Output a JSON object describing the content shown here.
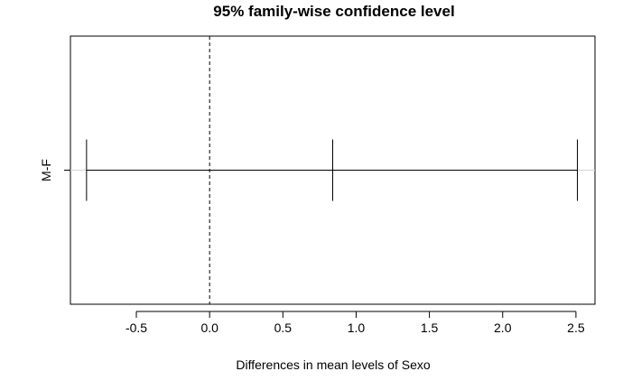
{
  "chart_data": {
    "type": "interval",
    "title": "95% family-wise confidence level",
    "xlabel": "Differences in mean levels of Sexo",
    "ylabel": "",
    "xlim": [
      -0.95,
      2.63
    ],
    "xticks": [
      -0.5,
      0.0,
      0.5,
      1.0,
      1.5,
      2.0,
      2.5
    ],
    "xtick_labels": [
      "-0.5",
      "0.0",
      "0.5",
      "1.0",
      "1.5",
      "2.0",
      "2.5"
    ],
    "reference_line": 0,
    "intervals": [
      {
        "label": "M-F",
        "lower": -0.84,
        "estimate": 0.84,
        "upper": 2.51
      }
    ],
    "grid": false
  },
  "colors": {
    "interval": "#000000",
    "reference_line": "#000000",
    "row_guide": "#d3d3d3"
  }
}
